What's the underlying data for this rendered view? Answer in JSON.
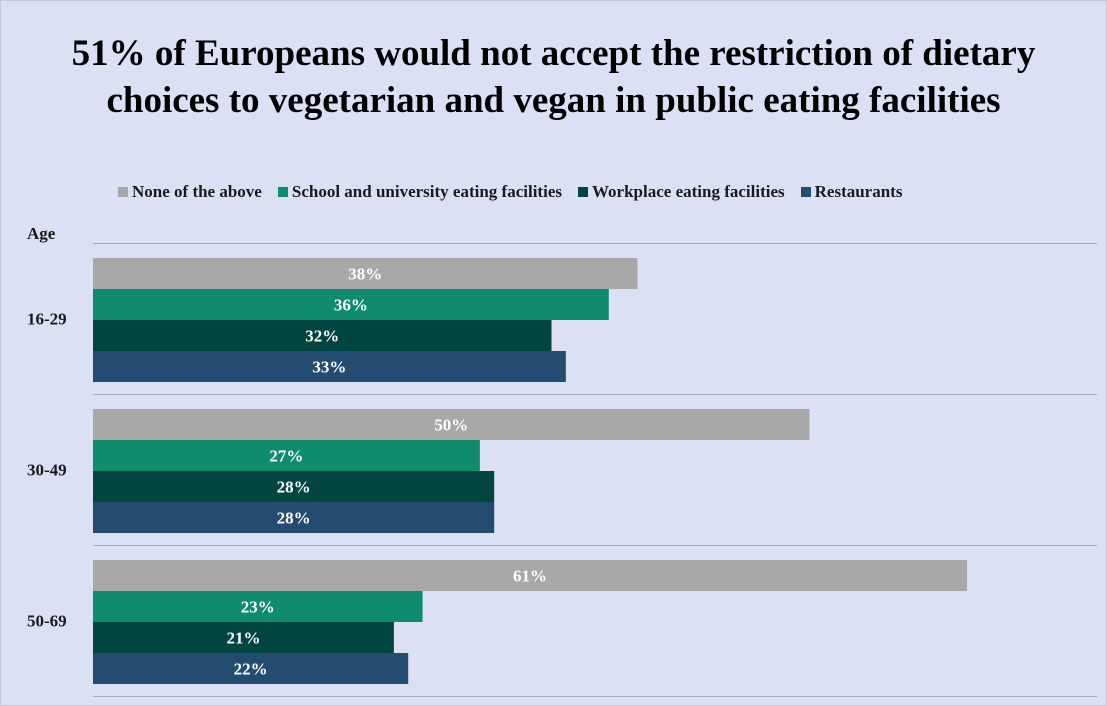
{
  "title": "51% of Europeans would not accept the restriction of dietary choices to vegetarian and vegan in public eating facilities",
  "chart_data": {
    "type": "bar",
    "orientation": "horizontal",
    "title": "51% of Europeans would not accept the restriction of dietary choices to vegetarian and vegan in public eating facilities",
    "ylabel": "Age",
    "xlabel": "",
    "categories": [
      "16-29",
      "30-49",
      "50-69"
    ],
    "series": [
      {
        "name": "None of the above",
        "color": "#a8a8a8",
        "values": [
          38,
          50,
          61
        ]
      },
      {
        "name": "School and university eating facilities",
        "color": "#0e8c6c",
        "values": [
          36,
          27,
          23
        ]
      },
      {
        "name": "Workplace eating facilities",
        "color": "#004540",
        "values": [
          32,
          28,
          21
        ]
      },
      {
        "name": "Restaurants",
        "color": "#234c70",
        "values": [
          33,
          28,
          22
        ]
      }
    ],
    "value_suffix": "%",
    "xlim": [
      0,
      71
    ],
    "legend_position": "top",
    "grid": "horizontal separators between groups"
  }
}
